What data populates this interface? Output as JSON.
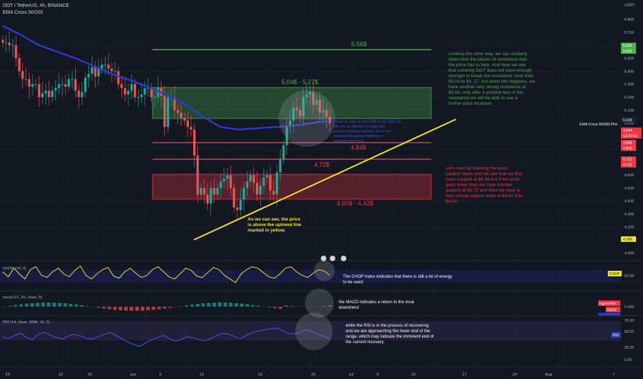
{
  "header": {
    "symbol_line": "DOT / TetherUS, 4h, BINANCE",
    "indicator": "EMA Cross 50/200"
  },
  "colors": {
    "background": "#131722",
    "grid": "#1e2230",
    "up": "#26a69a",
    "down": "#ef5350",
    "ema200": "#2b3cd6",
    "ema50": "#3a3f9e",
    "trend": "#f2e529",
    "level_red": "#f23645",
    "level_green": "#4caf50",
    "zone_green": "#4caf50",
    "zone_red": "#f23645",
    "green_text": "#4caf50",
    "red_text": "#f23645",
    "chop": "#f2e529",
    "rsi": "#3f51d8",
    "axis_text": "#b2b5be"
  },
  "price_axis": {
    "unit": "USDT",
    "ticks": [
      "5.800",
      "5.700",
      "5.600",
      "5.500",
      "5.400",
      "5.300",
      "5.200",
      "5.100",
      "5.000",
      "4.900",
      "4.800",
      "4.700",
      "4.600",
      "4.500",
      "4.400",
      "4.300",
      "4.200",
      "4.100",
      "4.000"
    ]
  },
  "price_badges": {
    "b5560a": "5.560",
    "b5560b": "5.560",
    "b5026": "5.026",
    "b4944": "4.944",
    "b_time": "02:20:51",
    "b4846a": "4.846",
    "b4846b": "4.846",
    "b4722a": "4.722",
    "b4722b": "4.722",
    "b4109": "4.109",
    "ema_tag": "EMA Cross 50/200:Plot"
  },
  "time_axis": {
    "ticks": [
      "15",
      "22",
      "26",
      "Jun",
      "5",
      "12",
      "19",
      "26",
      "Jul",
      "5",
      "10",
      "17",
      "24",
      "Aug",
      "7"
    ]
  },
  "chart_data": {
    "type": "candlestick",
    "title": "DOT / TetherUS, 4h, BINANCE",
    "ylim": [
      3.9,
      5.85
    ],
    "series": [
      {
        "name": "DOT / TetherUS",
        "values": [
          5.62,
          5.62,
          5.6,
          5.6,
          5.5,
          5.4,
          5.34,
          5.34,
          5.28,
          5.3,
          5.3,
          5.2,
          5.23,
          5.25,
          5.2,
          5.25,
          5.27,
          5.3,
          5.3,
          5.28,
          5.34,
          5.34,
          5.25,
          5.2,
          5.24,
          5.35,
          5.38,
          5.43,
          5.36,
          5.42,
          5.45,
          5.45,
          5.42,
          5.4,
          5.4,
          5.3,
          5.27,
          5.22,
          5.25,
          5.3,
          5.2,
          5.2,
          5.22,
          5.27,
          5.27,
          5.2,
          5.2,
          5.27,
          5.21,
          4.97,
          5.2,
          5.2,
          5.1,
          5.08,
          5.04,
          5.02,
          4.97,
          4.95,
          4.75,
          4.45,
          4.5,
          4.45,
          4.38,
          4.5,
          4.45,
          4.5,
          4.55,
          4.57,
          4.6,
          4.5,
          4.35,
          4.33,
          4.41,
          4.5,
          4.55,
          4.6,
          4.54,
          4.45,
          4.52,
          4.58,
          4.6,
          4.48,
          4.45,
          4.62,
          4.72,
          4.83,
          4.97,
          5.02,
          5.12,
          5.1,
          5.05,
          5.2,
          5.22,
          5.24,
          5.14,
          5.18,
          5.08,
          5.1,
          5.05,
          5.0
        ]
      },
      {
        "name": "EMA Cross 50/200",
        "values": [
          5.75,
          5.68,
          5.6,
          5.55,
          5.5,
          5.44,
          5.38,
          5.33,
          5.28,
          5.22,
          5.15,
          5.05,
          4.97,
          4.95,
          4.96,
          4.97,
          4.98,
          5.0,
          5.02
        ]
      }
    ],
    "zones": [
      {
        "label": "5,04$ - 5,27$",
        "from": 5.04,
        "to": 5.27
      },
      {
        "label": "4,60$ - 4,42$",
        "from": 4.42,
        "to": 4.6
      }
    ],
    "levels": [
      {
        "label": "5,56$",
        "value": 5.56
      },
      {
        "label": "4,84$",
        "value": 4.846
      },
      {
        "label": "4,72$",
        "value": 4.722
      }
    ],
    "trendline": {
      "from": 4.17,
      "to": 5.05
    }
  },
  "annotations": {
    "green_note": "Looking the other way, we can similarly determine the places of resistance that the price has to face. And here we see that currently DOT does not have enough strength to break the resistance zone from $5.04 to $5. 27, but when this happens, we have another very strong resistance at $5.56, only after a positive test of this resistance we will be able to see a further price increase.",
    "red_note": "Let's start by marking the price support spots and we see that we first have support at $4.84 but if the price goes lower then we have another support at $4.72 and then we have a very strong support zone at $4.60 $ to $4.42.",
    "ema_note": "When we turn on the EMA Cross 200, we will see an attempt to return the price to a strong uptrend, but at the moment the price is fighting to maintain this trend.",
    "yellow_note": "As we can see, the price is above the uptrend line marked in yellow.",
    "chop_note": "The CHOP index indicates that there is still a lot of energy to be used",
    "macd_note": "the MACD indicates a return to the local downtrend",
    "rsi_note": "while the RSI is in the process of recovering and we are approaching the lower end of the range, which may indicate the imminent end of the current recovery."
  },
  "chop": {
    "label": "CHOP (14, 0)",
    "axis": [
      "50.00"
    ],
    "badge": "CHOP",
    "values": [
      55,
      48,
      60,
      52,
      45,
      58,
      62,
      50,
      47,
      55,
      60,
      52,
      48,
      57,
      63,
      50,
      45,
      52,
      58,
      61,
      49,
      46,
      55,
      60,
      53,
      47,
      50,
      58,
      62,
      55,
      48,
      45,
      52,
      60,
      57,
      49,
      47,
      54,
      61,
      58,
      50,
      45,
      40,
      52,
      58,
      62,
      60,
      54,
      48,
      46,
      52,
      60,
      62,
      55,
      50,
      47,
      53,
      58,
      56,
      50
    ]
  },
  "macd": {
    "label": "macd (12, 26, close, 9)",
    "axis": [
      "0.000"
    ],
    "badges": {
      "signal": "signal line",
      "macd": "macd",
      "hist": "macd hist"
    }
  },
  "rsi": {
    "label": "RSI (14, close, SMA, 14, 2)",
    "axis": [
      "75.00",
      "50.00",
      "25.00",
      "0.00"
    ],
    "badge": "RSI",
    "values": [
      52,
      48,
      55,
      60,
      50,
      45,
      58,
      62,
      56,
      50,
      47,
      53,
      58,
      54,
      49,
      46,
      52,
      57,
      62,
      55,
      48,
      40,
      35,
      30,
      38,
      45,
      50,
      55,
      48,
      42,
      46,
      52,
      50,
      45,
      43,
      48,
      55,
      60,
      58,
      52,
      48,
      55,
      62,
      65,
      68,
      70,
      72,
      66,
      60,
      58,
      62,
      68,
      64,
      58,
      52,
      48
    ]
  }
}
